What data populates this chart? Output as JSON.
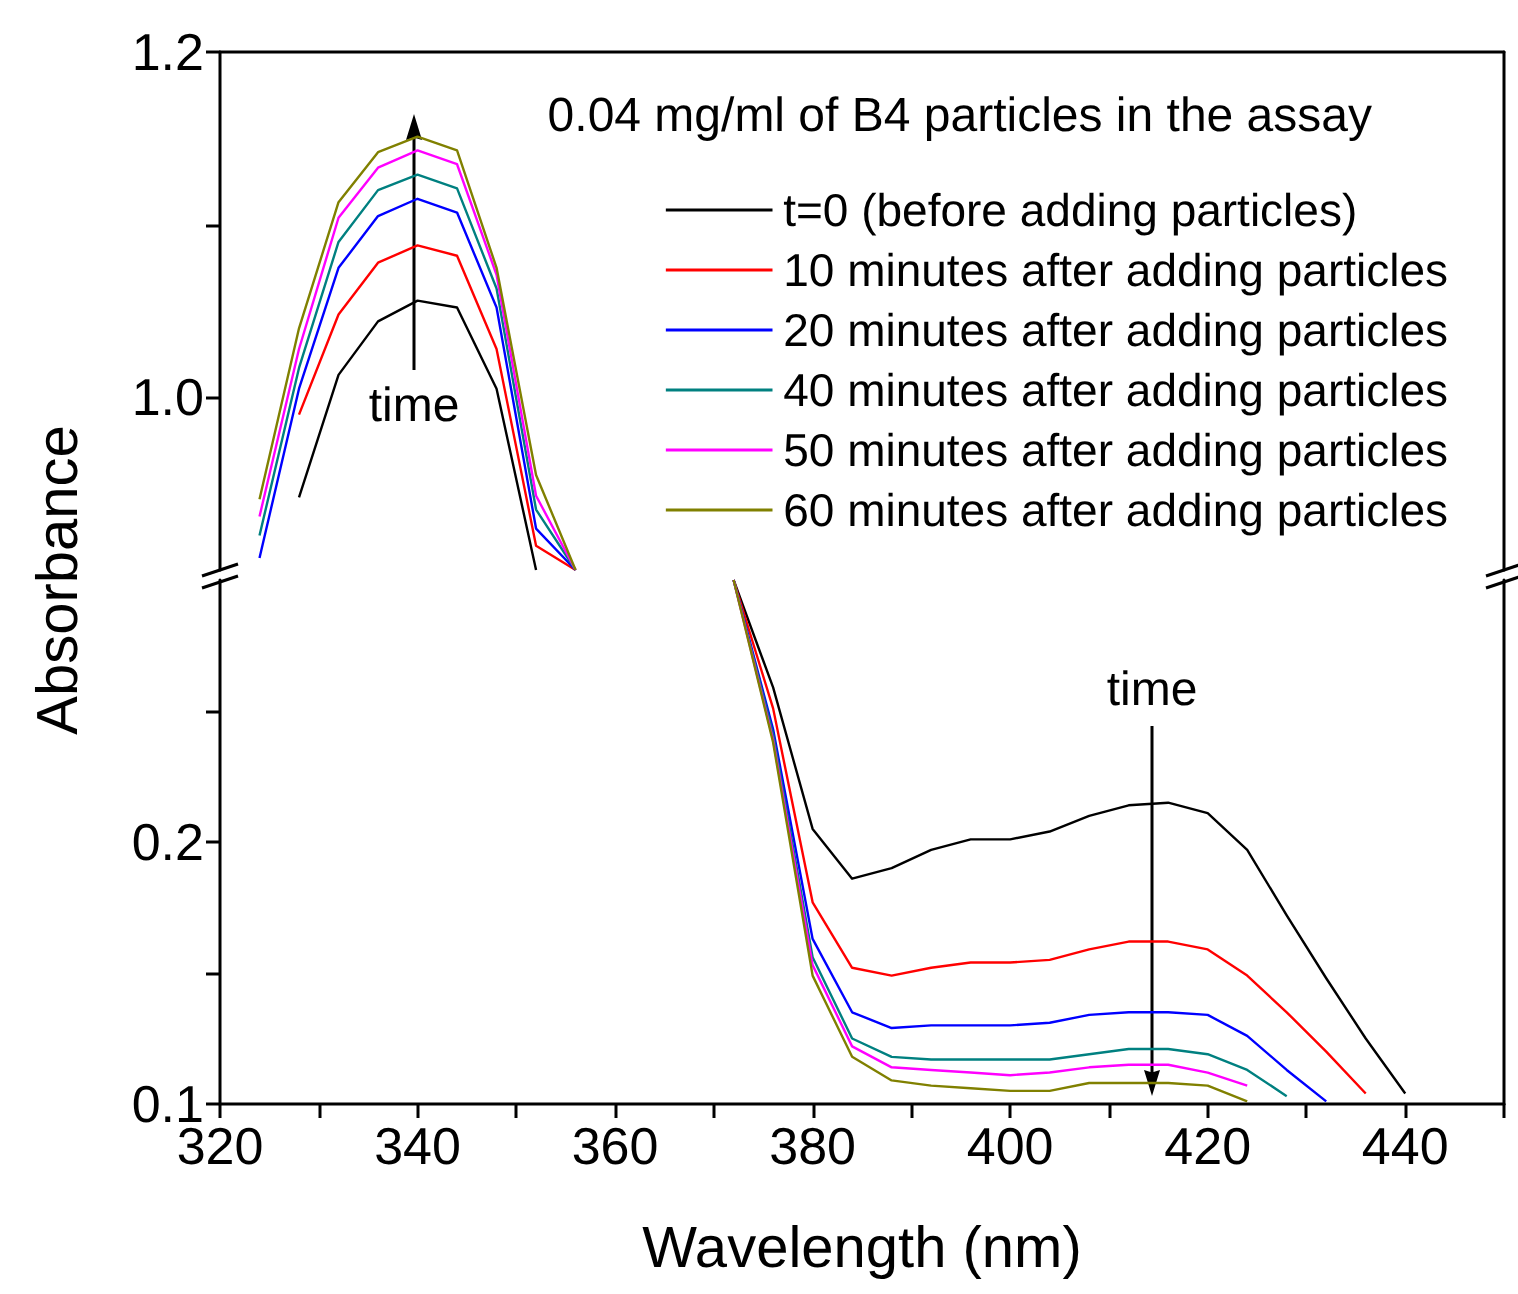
{
  "chart_data": [
    {
      "type": "line",
      "title": "0.04 mg/ml of B4 particles in the assay",
      "xlim": [
        320,
        450
      ],
      "ylim": [
        0.9,
        1.2
      ],
      "yticks": [
        {
          "value": 1,
          "label": "1.0"
        },
        {
          "value": 1.1,
          "label": null
        },
        1.2
      ],
      "tick_labels": "y",
      "legend": "right",
      "marker": "none",
      "line_style": "solid",
      "annotations": [
        "time"
      ],
      "series": [
        {
          "name": "t=0 (before adding particles)",
          "color": "#000000",
          "x": [
            328,
            332,
            336,
            340,
            344,
            348,
            352
          ],
          "values": [
            0.942,
            1.013,
            1.044,
            1.056,
            1.052,
            1.005,
            0.9
          ]
        },
        {
          "name": "10 minutes after adding particles",
          "color": "#ff0000",
          "x": [
            328,
            332,
            336,
            340,
            344,
            348,
            352,
            356
          ],
          "values": [
            0.99,
            1.048,
            1.078,
            1.088,
            1.082,
            1.028,
            0.914,
            0.9
          ]
        },
        {
          "name": "20 minutes after adding particles",
          "color": "#0000ff",
          "x": [
            324,
            328,
            332,
            336,
            340,
            344,
            348,
            352,
            356
          ],
          "values": [
            0.907,
            1.005,
            1.075,
            1.105,
            1.115,
            1.107,
            1.052,
            0.924,
            0.9
          ]
        },
        {
          "name": "40 minutes after adding particles",
          "color": "#008080",
          "x": [
            324,
            328,
            332,
            336,
            340,
            344,
            348,
            352,
            356
          ],
          "values": [
            0.92,
            1.017,
            1.09,
            1.12,
            1.129,
            1.121,
            1.063,
            0.935,
            0.9
          ]
        },
        {
          "name": "50 minutes after adding particles",
          "color": "#ff00ff",
          "x": [
            324,
            328,
            332,
            336,
            340,
            344,
            348,
            352,
            356
          ],
          "values": [
            0.931,
            1.028,
            1.104,
            1.133,
            1.143,
            1.135,
            1.071,
            0.943,
            0.9
          ]
        },
        {
          "name": "60 minutes after adding particles",
          "color": "#808000",
          "x": [
            324,
            328,
            332,
            336,
            340,
            344,
            348,
            352,
            356
          ],
          "values": [
            0.941,
            1.04,
            1.113,
            1.142,
            1.151,
            1.143,
            1.075,
            0.955,
            0.9
          ]
        }
      ]
    },
    {
      "type": "line",
      "xlabel": "Wavelength (nm)",
      "ylabel": "Absorbance",
      "xlim": [
        320,
        450
      ],
      "xticks": [
        320,
        {
          "value": 330,
          "label": null
        },
        340,
        {
          "value": 350,
          "label": null
        },
        360,
        {
          "value": 370,
          "label": null
        },
        380,
        {
          "value": 390,
          "label": null
        },
        400,
        {
          "value": 410,
          "label": null
        },
        420,
        {
          "value": 430,
          "label": null
        },
        440,
        {
          "value": 450,
          "label": null
        }
      ],
      "ylim": [
        0.1,
        0.3
      ],
      "yticks": [
        0.1,
        {
          "value": 0.15,
          "label": null
        },
        0.2,
        {
          "value": 0.25,
          "label": null
        }
      ],
      "marker": "none",
      "line_style": "solid",
      "annotations": [
        "time"
      ],
      "series": [
        {
          "color": "#000000",
          "x": [
            372,
            376,
            380,
            384,
            388,
            392,
            396,
            400,
            404,
            408,
            412,
            416,
            420,
            424,
            428,
            432,
            436,
            440
          ],
          "values": [
            0.3,
            0.259,
            0.205,
            0.186,
            0.19,
            0.197,
            0.201,
            0.201,
            0.204,
            0.21,
            0.214,
            0.215,
            0.211,
            0.197,
            0.172,
            0.148,
            0.125,
            0.104
          ]
        },
        {
          "color": "#ff0000",
          "x": [
            372,
            376,
            380,
            384,
            388,
            392,
            396,
            400,
            404,
            408,
            412,
            416,
            420,
            424,
            428,
            432,
            436
          ],
          "values": [
            0.3,
            0.251,
            0.177,
            0.152,
            0.149,
            0.152,
            0.154,
            0.154,
            0.155,
            0.159,
            0.162,
            0.162,
            0.159,
            0.149,
            0.135,
            0.12,
            0.104
          ]
        },
        {
          "color": "#0000ff",
          "x": [
            372,
            376,
            380,
            384,
            388,
            392,
            396,
            400,
            404,
            408,
            412,
            416,
            420,
            424,
            428,
            432
          ],
          "values": [
            0.3,
            0.243,
            0.163,
            0.135,
            0.129,
            0.13,
            0.13,
            0.13,
            0.131,
            0.134,
            0.135,
            0.135,
            0.134,
            0.126,
            0.113,
            0.101
          ]
        },
        {
          "color": "#008080",
          "x": [
            372,
            376,
            380,
            384,
            388,
            392,
            396,
            400,
            404,
            408,
            412,
            416,
            420,
            424,
            428
          ],
          "values": [
            0.3,
            0.241,
            0.156,
            0.125,
            0.118,
            0.117,
            0.117,
            0.117,
            0.117,
            0.119,
            0.121,
            0.121,
            0.119,
            0.113,
            0.103
          ]
        },
        {
          "color": "#ff00ff",
          "x": [
            372,
            376,
            380,
            384,
            388,
            392,
            396,
            400,
            404,
            408,
            412,
            416,
            420,
            424
          ],
          "values": [
            0.3,
            0.239,
            0.153,
            0.122,
            0.114,
            0.113,
            0.112,
            0.111,
            0.112,
            0.114,
            0.115,
            0.115,
            0.112,
            0.107
          ]
        },
        {
          "color": "#808000",
          "x": [
            372,
            376,
            380,
            384,
            388,
            392,
            396,
            400,
            404,
            408,
            412,
            416,
            420,
            424
          ],
          "values": [
            0.3,
            0.238,
            0.149,
            0.118,
            0.109,
            0.107,
            0.106,
            0.105,
            0.105,
            0.108,
            0.108,
            0.108,
            0.107,
            0.101
          ]
        }
      ]
    }
  ]
}
